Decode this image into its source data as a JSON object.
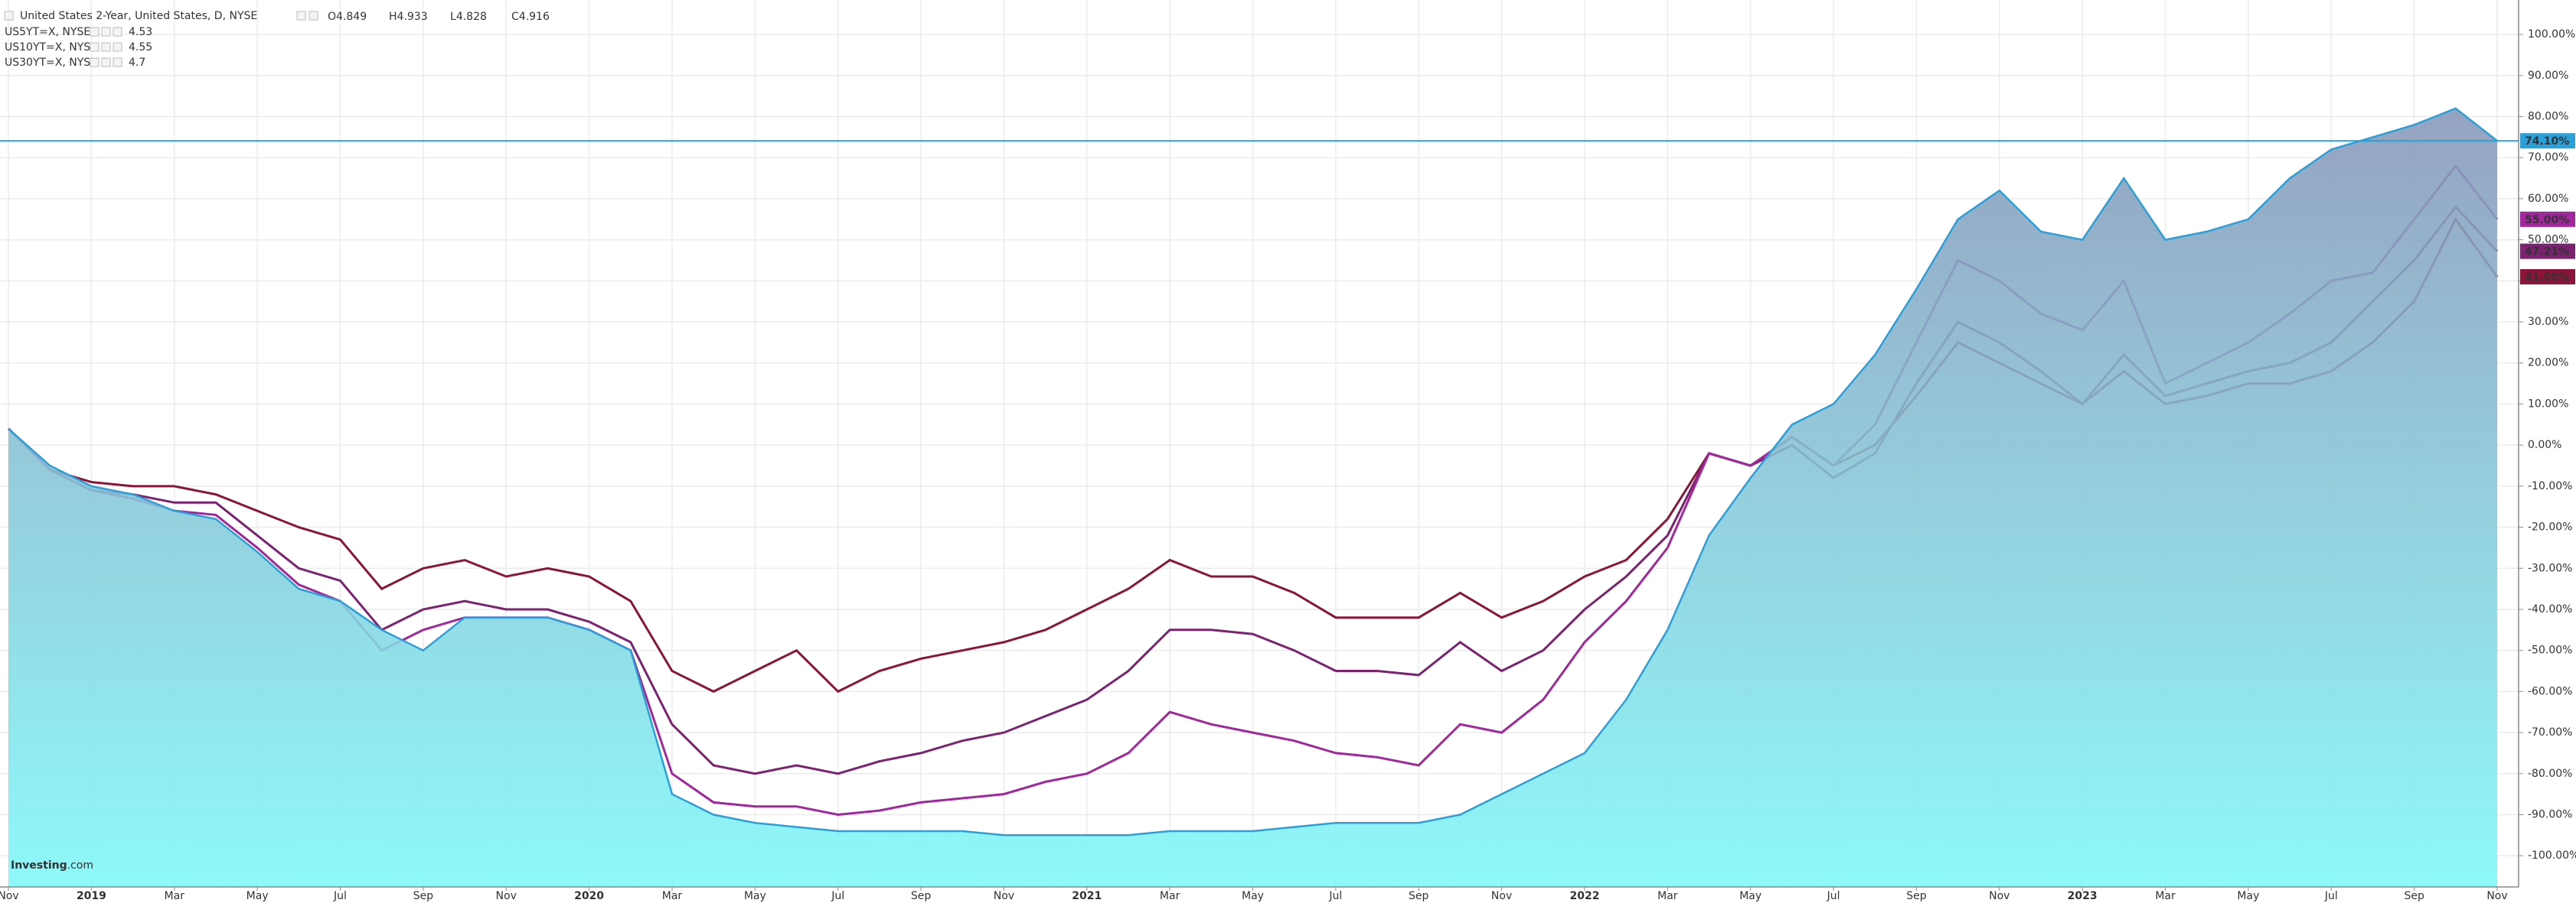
{
  "chart_data": {
    "type": "area",
    "title": "United States 2-Year, United States, D, NYSE",
    "ohlc": [
      {
        "label": "O",
        "value": 4.849
      },
      {
        "label": "H",
        "value": 4.933
      },
      {
        "label": "L",
        "value": 4.828
      },
      {
        "label": "C",
        "value": 4.916
      }
    ],
    "watermark": {
      "name": "Investing",
      "suffix": ".com"
    },
    "categories": [
      "Nov",
      null,
      "2019",
      null,
      "Mar",
      null,
      "May",
      null,
      "Jul",
      null,
      "Sep",
      null,
      "Nov",
      null,
      "2020",
      null,
      "Mar",
      null,
      "May",
      null,
      "Jul",
      null,
      "Sep",
      null,
      "Nov",
      null,
      "2021",
      null,
      "Mar",
      null,
      "May",
      null,
      "Jul",
      null,
      "Sep",
      null,
      "Nov",
      null,
      "2022",
      null,
      "Mar",
      null,
      "May",
      null,
      "Jul",
      null,
      "Sep",
      null,
      "Nov",
      null,
      "2023",
      null,
      "Mar",
      null,
      "May",
      null,
      "Jul",
      null,
      "Sep",
      null,
      "Nov"
    ],
    "series": [
      {
        "name": "United States 2-Year",
        "color": "#2a9fd8",
        "last_label": "74.10%",
        "values": [
          4,
          -5,
          -10,
          -12,
          -16,
          -18,
          -26,
          -35,
          -38,
          -45,
          -50,
          -42,
          -42,
          -42,
          -45,
          -50,
          -85,
          -90,
          -92,
          -93,
          -94,
          -94,
          -94,
          -94,
          -95,
          -95,
          -95,
          -95,
          -94,
          -94,
          -94,
          -93,
          -92,
          -92,
          -92,
          -90,
          -85,
          -80,
          -75,
          -62,
          -45,
          -22,
          -8,
          5,
          10,
          22,
          38,
          55,
          62,
          52,
          50,
          65,
          50,
          52,
          55,
          65,
          72,
          75,
          78,
          82,
          74.1
        ]
      },
      {
        "name": "US5YT=X, NYSE",
        "color": "#a0289c",
        "quote": 4.53,
        "last_label": "55.00%",
        "values": [
          4,
          -6,
          -11,
          -13,
          -16,
          -17,
          -25,
          -34,
          -38,
          -50,
          -45,
          -42,
          -42,
          -42,
          -45,
          -50,
          -80,
          -87,
          -88,
          -88,
          -90,
          -89,
          -87,
          -86,
          -85,
          -82,
          -80,
          -75,
          -65,
          -68,
          -70,
          -72,
          -75,
          -76,
          -78,
          -68,
          -70,
          -62,
          -48,
          -38,
          -25,
          -2,
          -5,
          2,
          -5,
          5,
          25,
          45,
          40,
          32,
          28,
          40,
          15,
          20,
          25,
          32,
          40,
          42,
          55,
          68,
          55
        ]
      },
      {
        "name": "US10YT=X, NYSE",
        "color": "#7b2271",
        "quote": 4.55,
        "last_label": "47.21%",
        "values": [
          4,
          -6,
          -11,
          -12,
          -14,
          -14,
          -22,
          -30,
          -33,
          -45,
          -40,
          -38,
          -40,
          -40,
          -43,
          -48,
          -68,
          -78,
          -80,
          -78,
          -80,
          -77,
          -75,
          -72,
          -70,
          -66,
          -62,
          -55,
          -45,
          -45,
          -46,
          -50,
          -55,
          -55,
          -56,
          -48,
          -55,
          -50,
          -40,
          -32,
          -22,
          -2,
          -5,
          0,
          -8,
          -2,
          15,
          30,
          25,
          18,
          10,
          22,
          12,
          15,
          18,
          20,
          25,
          35,
          45,
          58,
          47.21
        ]
      },
      {
        "name": "US30YT=X, NYSE",
        "color": "#8b1538",
        "quote": 4.7,
        "last_label": "41.00%",
        "values": [
          4,
          -6,
          -9,
          -10,
          -10,
          -12,
          -16,
          -20,
          -23,
          -35,
          -30,
          -28,
          -32,
          -30,
          -32,
          -38,
          -55,
          -60,
          -55,
          -50,
          -60,
          -55,
          -52,
          -50,
          -48,
          -45,
          -40,
          -35,
          -28,
          -32,
          -32,
          -36,
          -42,
          -42,
          -42,
          -36,
          -42,
          -38,
          -32,
          -28,
          -18,
          -2,
          -5,
          2,
          -5,
          0,
          12,
          25,
          20,
          15,
          10,
          18,
          10,
          12,
          15,
          15,
          18,
          25,
          35,
          55,
          41
        ]
      }
    ],
    "ylim": [
      -107.6,
      108.4
    ],
    "yticks": [
      {
        "value": 100,
        "label": "100.00%"
      },
      {
        "value": 90,
        "label": "90.00%"
      },
      {
        "value": 80,
        "label": "80.00%"
      },
      {
        "value": 70,
        "label": "70.00%"
      },
      {
        "value": 60,
        "label": "60.00%"
      },
      {
        "value": 50,
        "label": "50.00%"
      },
      {
        "value": 40,
        "label": "40.00%"
      },
      {
        "value": 30,
        "label": "30.00%"
      },
      {
        "value": 20,
        "label": "20.00%"
      },
      {
        "value": 10,
        "label": "10.00%"
      },
      {
        "value": 0,
        "label": "0.00%"
      },
      {
        "value": -10,
        "label": "-10.00%"
      },
      {
        "value": -20,
        "label": "-20.00%"
      },
      {
        "value": -30,
        "label": "-30.00%"
      },
      {
        "value": -40,
        "label": "-40.00%"
      },
      {
        "value": -50,
        "label": "-50.00%"
      },
      {
        "value": -60,
        "label": "-60.00%"
      },
      {
        "value": -70,
        "label": "-70.00%"
      },
      {
        "value": -80,
        "label": "-80.00%"
      },
      {
        "value": -90,
        "label": "-90.00%"
      },
      {
        "value": -100,
        "label": "-100.00%"
      }
    ],
    "grid": true
  }
}
